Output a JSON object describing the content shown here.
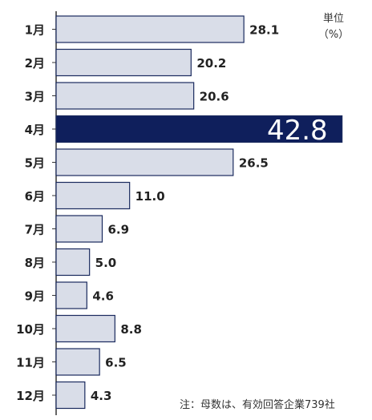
{
  "chart_data": {
    "type": "bar",
    "orientation": "horizontal",
    "categories": [
      "1月",
      "2月",
      "3月",
      "4月",
      "5月",
      "6月",
      "7月",
      "8月",
      "9月",
      "10月",
      "11月",
      "12月"
    ],
    "values": [
      28.1,
      20.2,
      20.6,
      42.8,
      26.5,
      11.0,
      6.9,
      5.0,
      4.6,
      8.8,
      6.5,
      4.3
    ],
    "value_labels": [
      "28.1",
      "20.2",
      "20.6",
      "42.8",
      "26.5",
      "11.0",
      "6.9",
      "5.0",
      "4.6",
      "8.8",
      "6.5",
      "4.3"
    ],
    "highlight_index": 3,
    "xlim": [
      0,
      43.2
    ],
    "unit_line1": "単位",
    "unit_line2": "（%）",
    "note": "注：母数は、有効回答企業739社",
    "colors": {
      "bar_fill": "#d9dde8",
      "bar_stroke": "#1a2a5e",
      "highlight_fill": "#0f1f5c",
      "highlight_text": "#ffffff",
      "label_text": "#222222",
      "axis": "#333333"
    }
  }
}
